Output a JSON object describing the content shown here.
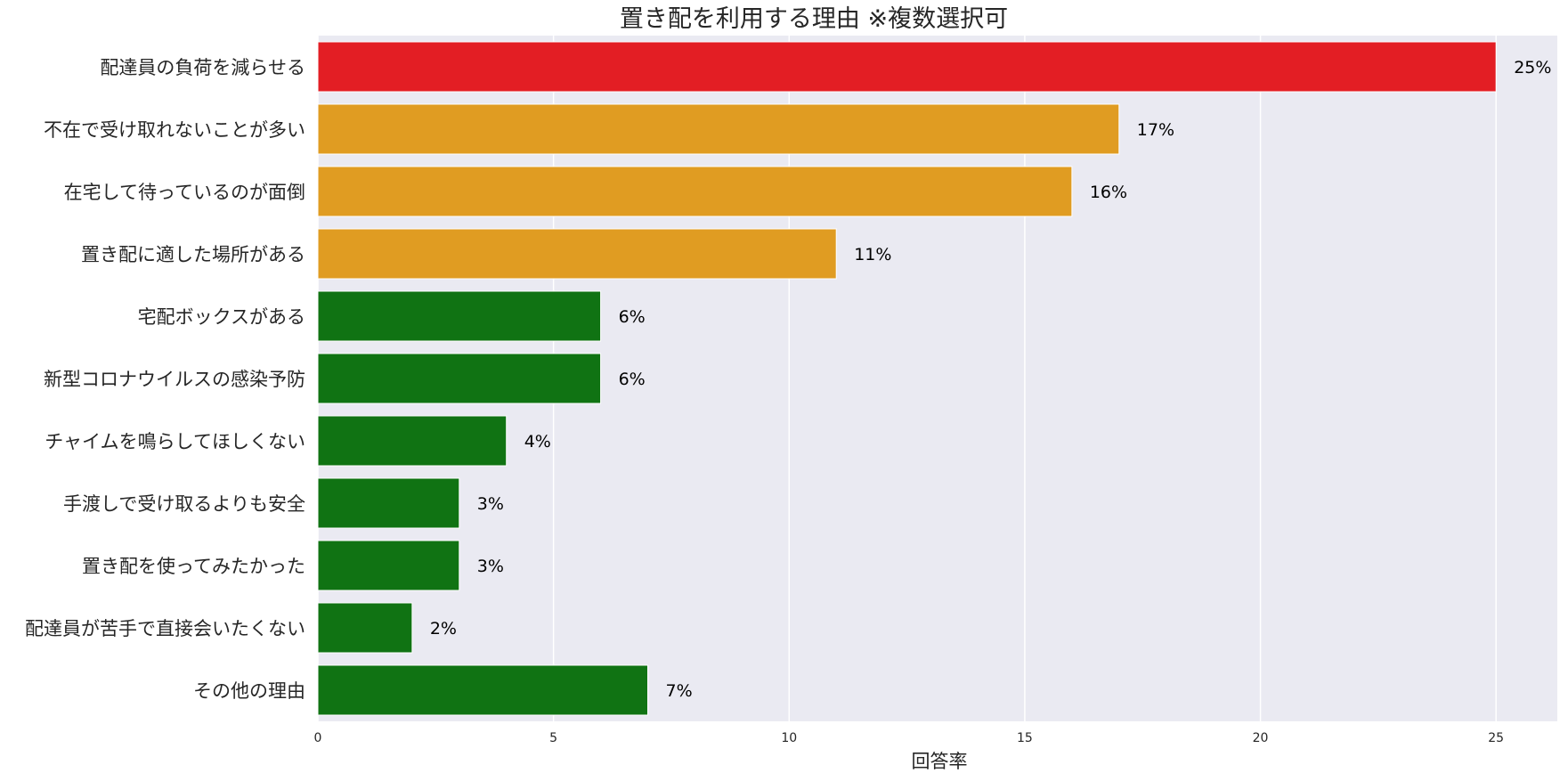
{
  "chart_data": {
    "type": "bar",
    "orientation": "horizontal",
    "title": "置き配を利用する理由 ※複数選択可",
    "xlabel": "回答率",
    "ylabel": "",
    "xlim": [
      0,
      26.3
    ],
    "xticks": [
      "0",
      "5",
      "10",
      "15",
      "20",
      "25"
    ],
    "xtick_values": [
      0,
      5,
      10,
      15,
      20,
      25
    ],
    "grid": true,
    "background_color": "#eaeaf2",
    "grid_color": "#ffffff",
    "categories": [
      "配達員の負荷を減らせる",
      "不在で受け取れないことが多い",
      "在宅して待っているのが面倒",
      "置き配に適した場所がある",
      "宅配ボックスがある",
      "新型コロナウイルスの感染予防",
      "チャイムを鳴らしてほしくない",
      "手渡しで受け取るよりも安全",
      "置き配を使ってみたかった",
      "配達員が苦手で直接会いたくない",
      "その他の理由"
    ],
    "values": [
      25,
      17,
      16,
      11,
      6,
      6,
      4,
      3,
      3,
      2,
      7
    ],
    "data_labels": [
      "25%",
      "17%",
      "16%",
      "11%",
      "6%",
      "6%",
      "4%",
      "3%",
      "3%",
      "2%",
      "7%"
    ],
    "bar_colors": [
      "#e31e24",
      "#e09c22",
      "#e09c22",
      "#e09c22",
      "#107313",
      "#107313",
      "#107313",
      "#107313",
      "#107313",
      "#107313",
      "#107313"
    ]
  }
}
